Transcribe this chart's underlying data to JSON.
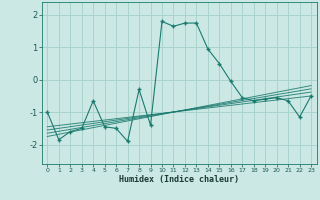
{
  "title": "",
  "xlabel": "Humidex (Indice chaleur)",
  "background_color": "#cce8e4",
  "grid_color": "#a8d4ce",
  "line_color": "#1a7a6e",
  "xlim": [
    -0.5,
    23.5
  ],
  "ylim": [
    -2.6,
    2.4
  ],
  "xticks": [
    0,
    1,
    2,
    3,
    4,
    5,
    6,
    7,
    8,
    9,
    10,
    11,
    12,
    13,
    14,
    15,
    16,
    17,
    18,
    19,
    20,
    21,
    22,
    23
  ],
  "yticks": [
    -2,
    -1,
    0,
    1,
    2
  ],
  "main_x": [
    0,
    1,
    2,
    3,
    4,
    5,
    6,
    7,
    8,
    9,
    10,
    11,
    12,
    13,
    14,
    15,
    16,
    17,
    18,
    19,
    20,
    21,
    22,
    23
  ],
  "main_y": [
    -1.0,
    -1.85,
    -1.6,
    -1.5,
    -0.65,
    -1.45,
    -1.5,
    -1.9,
    -0.3,
    -1.4,
    1.8,
    1.65,
    1.75,
    1.75,
    0.95,
    0.5,
    -0.05,
    -0.55,
    -0.65,
    -0.6,
    -0.55,
    -0.65,
    -1.15,
    -0.5
  ],
  "reg_lines": [
    {
      "x": [
        0,
        23
      ],
      "y": [
        -1.45,
        -0.5
      ]
    },
    {
      "x": [
        0,
        23
      ],
      "y": [
        -1.55,
        -0.38
      ]
    },
    {
      "x": [
        0,
        23
      ],
      "y": [
        -1.65,
        -0.28
      ]
    },
    {
      "x": [
        0,
        23
      ],
      "y": [
        -1.75,
        -0.18
      ]
    }
  ]
}
